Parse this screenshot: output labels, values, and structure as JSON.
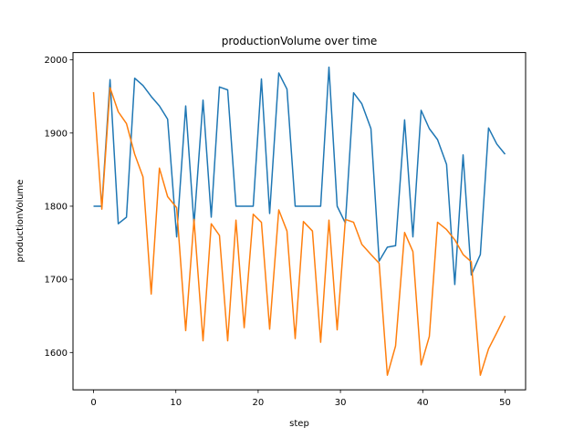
{
  "chart_data": {
    "type": "line",
    "title": "productionVolume over time",
    "xlabel": "step",
    "ylabel": "productionVolume",
    "xlim": [
      -2.5,
      52.5
    ],
    "ylim": [
      1549,
      2010
    ],
    "xticks": [
      0,
      10,
      20,
      30,
      40,
      50
    ],
    "yticks": [
      1600,
      1700,
      1800,
      1900,
      2000
    ],
    "grid": false,
    "series": [
      {
        "color": "#1f77b4",
        "x": [
          0,
          1,
          2,
          3,
          4,
          5,
          6,
          7,
          8,
          9,
          10.1,
          11.2,
          12.2,
          13.3,
          14.3,
          15.3,
          16.3,
          17.3,
          18.3,
          19.4,
          20.4,
          21.4,
          22.5,
          23.5,
          24.5,
          25.5,
          26.6,
          27.6,
          28.6,
          29.6,
          30.6,
          31.6,
          32.6,
          33.7,
          34.7,
          35.7,
          36.7,
          37.8,
          38.8,
          39.8,
          40.8,
          41.8,
          42.9,
          43.9,
          44.9,
          45.9,
          47.0,
          48.0,
          49.0,
          50.0
        ],
        "y": [
          1800,
          1800,
          1973,
          1776,
          1785,
          1975,
          1965,
          1950,
          1937,
          1919,
          1758,
          1937,
          1775,
          1945,
          1785,
          1963,
          1959,
          1800,
          1800,
          1800,
          1974,
          1790,
          1982,
          1960,
          1800,
          1800,
          1800,
          1800,
          1990,
          1800,
          1777,
          1955,
          1940,
          1906,
          1725,
          1744,
          1746,
          1918,
          1758,
          1931,
          1906,
          1891,
          1857,
          1693,
          1870,
          1706,
          1734,
          1907,
          1885,
          1871
        ]
      },
      {
        "color": "#ff7f0e",
        "x": [
          0,
          1,
          2,
          3,
          4,
          5,
          6,
          7,
          8,
          9,
          10.1,
          11.2,
          12.2,
          13.3,
          14.3,
          15.3,
          16.3,
          17.3,
          18.3,
          19.4,
          20.4,
          21.4,
          22.5,
          23.5,
          24.5,
          25.5,
          26.6,
          27.6,
          28.6,
          29.6,
          30.6,
          31.6,
          32.6,
          33.7,
          34.7,
          35.7,
          36.7,
          37.8,
          38.8,
          39.8,
          40.8,
          41.8,
          42.9,
          43.9,
          44.9,
          45.9,
          47.0,
          48.0,
          49.0,
          50.0
        ],
        "y": [
          1956,
          1796,
          1962,
          1929,
          1913,
          1871,
          1840,
          1680,
          1852,
          1813,
          1798,
          1630,
          1782,
          1616,
          1776,
          1760,
          1616,
          1781,
          1634,
          1789,
          1778,
          1632,
          1795,
          1766,
          1619,
          1779,
          1766,
          1614,
          1781,
          1631,
          1782,
          1778,
          1748,
          1734,
          1722,
          1569,
          1609,
          1764,
          1738,
          1583,
          1622,
          1778,
          1768,
          1754,
          1734,
          1724,
          1569,
          1605,
          1627,
          1650
        ]
      }
    ]
  }
}
